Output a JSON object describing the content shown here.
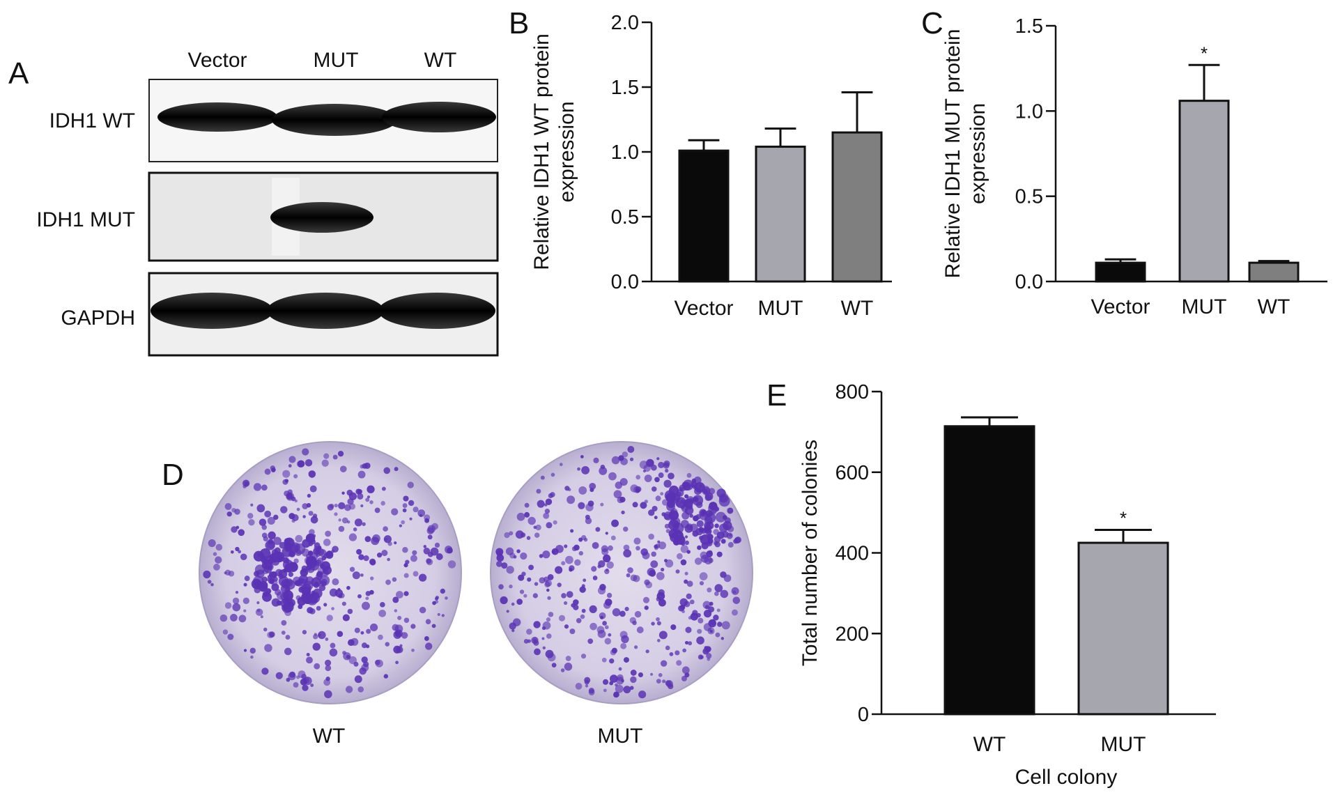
{
  "panels": {
    "a": "A",
    "b": "B",
    "c": "C",
    "d": "D",
    "e": "E"
  },
  "blot": {
    "lanes": [
      "Vector",
      "MUT",
      "WT"
    ],
    "rows": [
      "IDH1 WT",
      "IDH1 MUT",
      "GAPDH"
    ]
  },
  "colonies": {
    "labels": [
      "WT",
      "MUT"
    ],
    "stain_color": "#5a32b4",
    "plate_color": "#d9d3e6"
  },
  "chart_data": [
    {
      "id": "B",
      "type": "bar",
      "ylabel": [
        "Relative IDH1 WT protein",
        "expression"
      ],
      "xlabel": "",
      "categories": [
        "Vector",
        "MUT",
        "WT"
      ],
      "values": [
        1.01,
        1.04,
        1.15
      ],
      "errors": [
        0.08,
        0.14,
        0.31
      ],
      "colors": [
        "#0a0a0a",
        "#a6a6ae",
        "#7f7f7f"
      ],
      "ylim": [
        0,
        2.0
      ],
      "yticks": [
        "0.0",
        "0.5",
        "1.0",
        "1.5",
        "2.0"
      ],
      "significance": [
        "",
        "",
        ""
      ]
    },
    {
      "id": "C",
      "type": "bar",
      "ylabel": [
        "Relative IDH1 MUT protein",
        "expression"
      ],
      "xlabel": "",
      "categories": [
        "Vector",
        "MUT",
        "WT"
      ],
      "values": [
        0.11,
        1.06,
        0.11
      ],
      "errors": [
        0.02,
        0.21,
        0.01
      ],
      "colors": [
        "#0a0a0a",
        "#a6a6ae",
        "#7f7f7f"
      ],
      "ylim": [
        0,
        1.5
      ],
      "yticks": [
        "0.0",
        "0.5",
        "1.0",
        "1.5"
      ],
      "significance": [
        "",
        "*",
        ""
      ]
    },
    {
      "id": "E",
      "type": "bar",
      "ylabel": [
        "Total number of colonies"
      ],
      "xlabel": "Cell colony",
      "categories": [
        "WT",
        "MUT"
      ],
      "values": [
        714,
        425
      ],
      "errors": [
        22,
        32
      ],
      "colors": [
        "#0a0a0a",
        "#a6a6ae"
      ],
      "ylim": [
        0,
        800
      ],
      "yticks": [
        "0",
        "200",
        "400",
        "600",
        "800"
      ],
      "significance": [
        "",
        "*"
      ]
    }
  ]
}
